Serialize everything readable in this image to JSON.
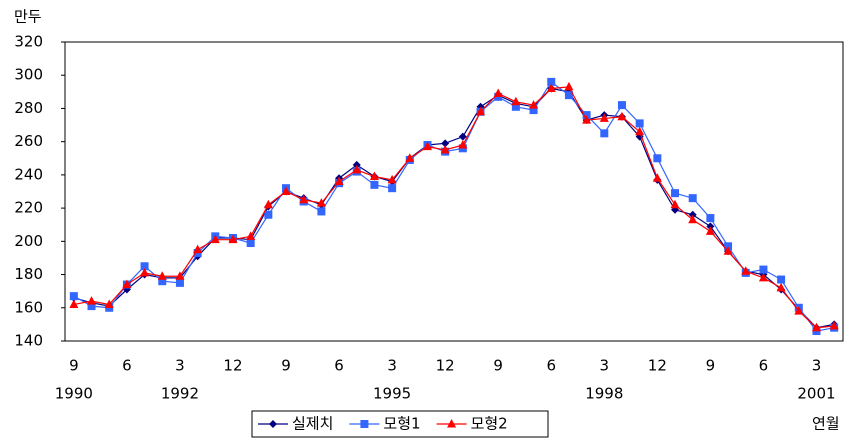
{
  "chart_data": {
    "type": "line",
    "y_unit": "만두",
    "x_label": "연월",
    "categories": [
      "9",
      null,
      null,
      "6",
      null,
      null,
      "3",
      null,
      null,
      "12",
      null,
      null,
      "9",
      null,
      null,
      "6",
      null,
      null,
      "3",
      null,
      null,
      "12",
      null,
      null,
      "9",
      null,
      null,
      "6",
      null,
      null,
      "3",
      null,
      null,
      "12",
      null,
      null,
      "9",
      null,
      null,
      "6",
      null,
      null,
      "3",
      null
    ],
    "year_labels": [
      "1990",
      null,
      null,
      null,
      null,
      null,
      "1992",
      null,
      null,
      null,
      null,
      null,
      null,
      null,
      null,
      null,
      null,
      null,
      "1995",
      null,
      null,
      null,
      null,
      null,
      null,
      null,
      null,
      null,
      null,
      null,
      "1998",
      null,
      null,
      null,
      null,
      null,
      null,
      null,
      null,
      null,
      null,
      null,
      "2001",
      null
    ],
    "series": [
      {
        "name": "실제치",
        "color": "#000080",
        "marker": "diamond",
        "values": [
          166,
          163,
          161,
          171,
          180,
          178,
          178,
          191,
          202,
          202,
          201,
          221,
          230,
          226,
          222,
          238,
          246,
          239,
          236,
          250,
          258,
          259,
          263,
          281,
          288,
          283,
          281,
          292,
          290,
          273,
          276,
          275,
          263,
          237,
          219,
          216,
          209,
          194,
          182,
          180,
          171,
          159,
          148,
          150
        ]
      },
      {
        "name": "모형1",
        "color": "#3366ff",
        "marker": "square",
        "values": [
          167,
          161,
          160,
          174,
          185,
          176,
          175,
          193,
          203,
          202,
          199,
          216,
          232,
          224,
          218,
          235,
          242,
          234,
          232,
          249,
          258,
          254,
          256,
          278,
          287,
          281,
          279,
          296,
          288,
          276,
          265,
          282,
          271,
          250,
          229,
          226,
          214,
          197,
          181,
          183,
          177,
          160,
          146,
          148
        ]
      },
      {
        "name": "모형2",
        "color": "#ff0000",
        "marker": "triangle",
        "values": [
          162,
          164,
          162,
          174,
          181,
          179,
          179,
          195,
          201,
          201,
          203,
          222,
          230,
          225,
          223,
          236,
          243,
          239,
          237,
          250,
          257,
          255,
          258,
          278,
          289,
          284,
          282,
          292,
          293,
          273,
          274,
          275,
          266,
          238,
          222,
          213,
          206,
          194,
          182,
          178,
          172,
          158,
          148,
          149
        ]
      }
    ],
    "ylim": [
      140,
      320
    ],
    "yticks": [
      140,
      160,
      180,
      200,
      220,
      240,
      260,
      280,
      300,
      320
    ],
    "legend": "bottom"
  }
}
